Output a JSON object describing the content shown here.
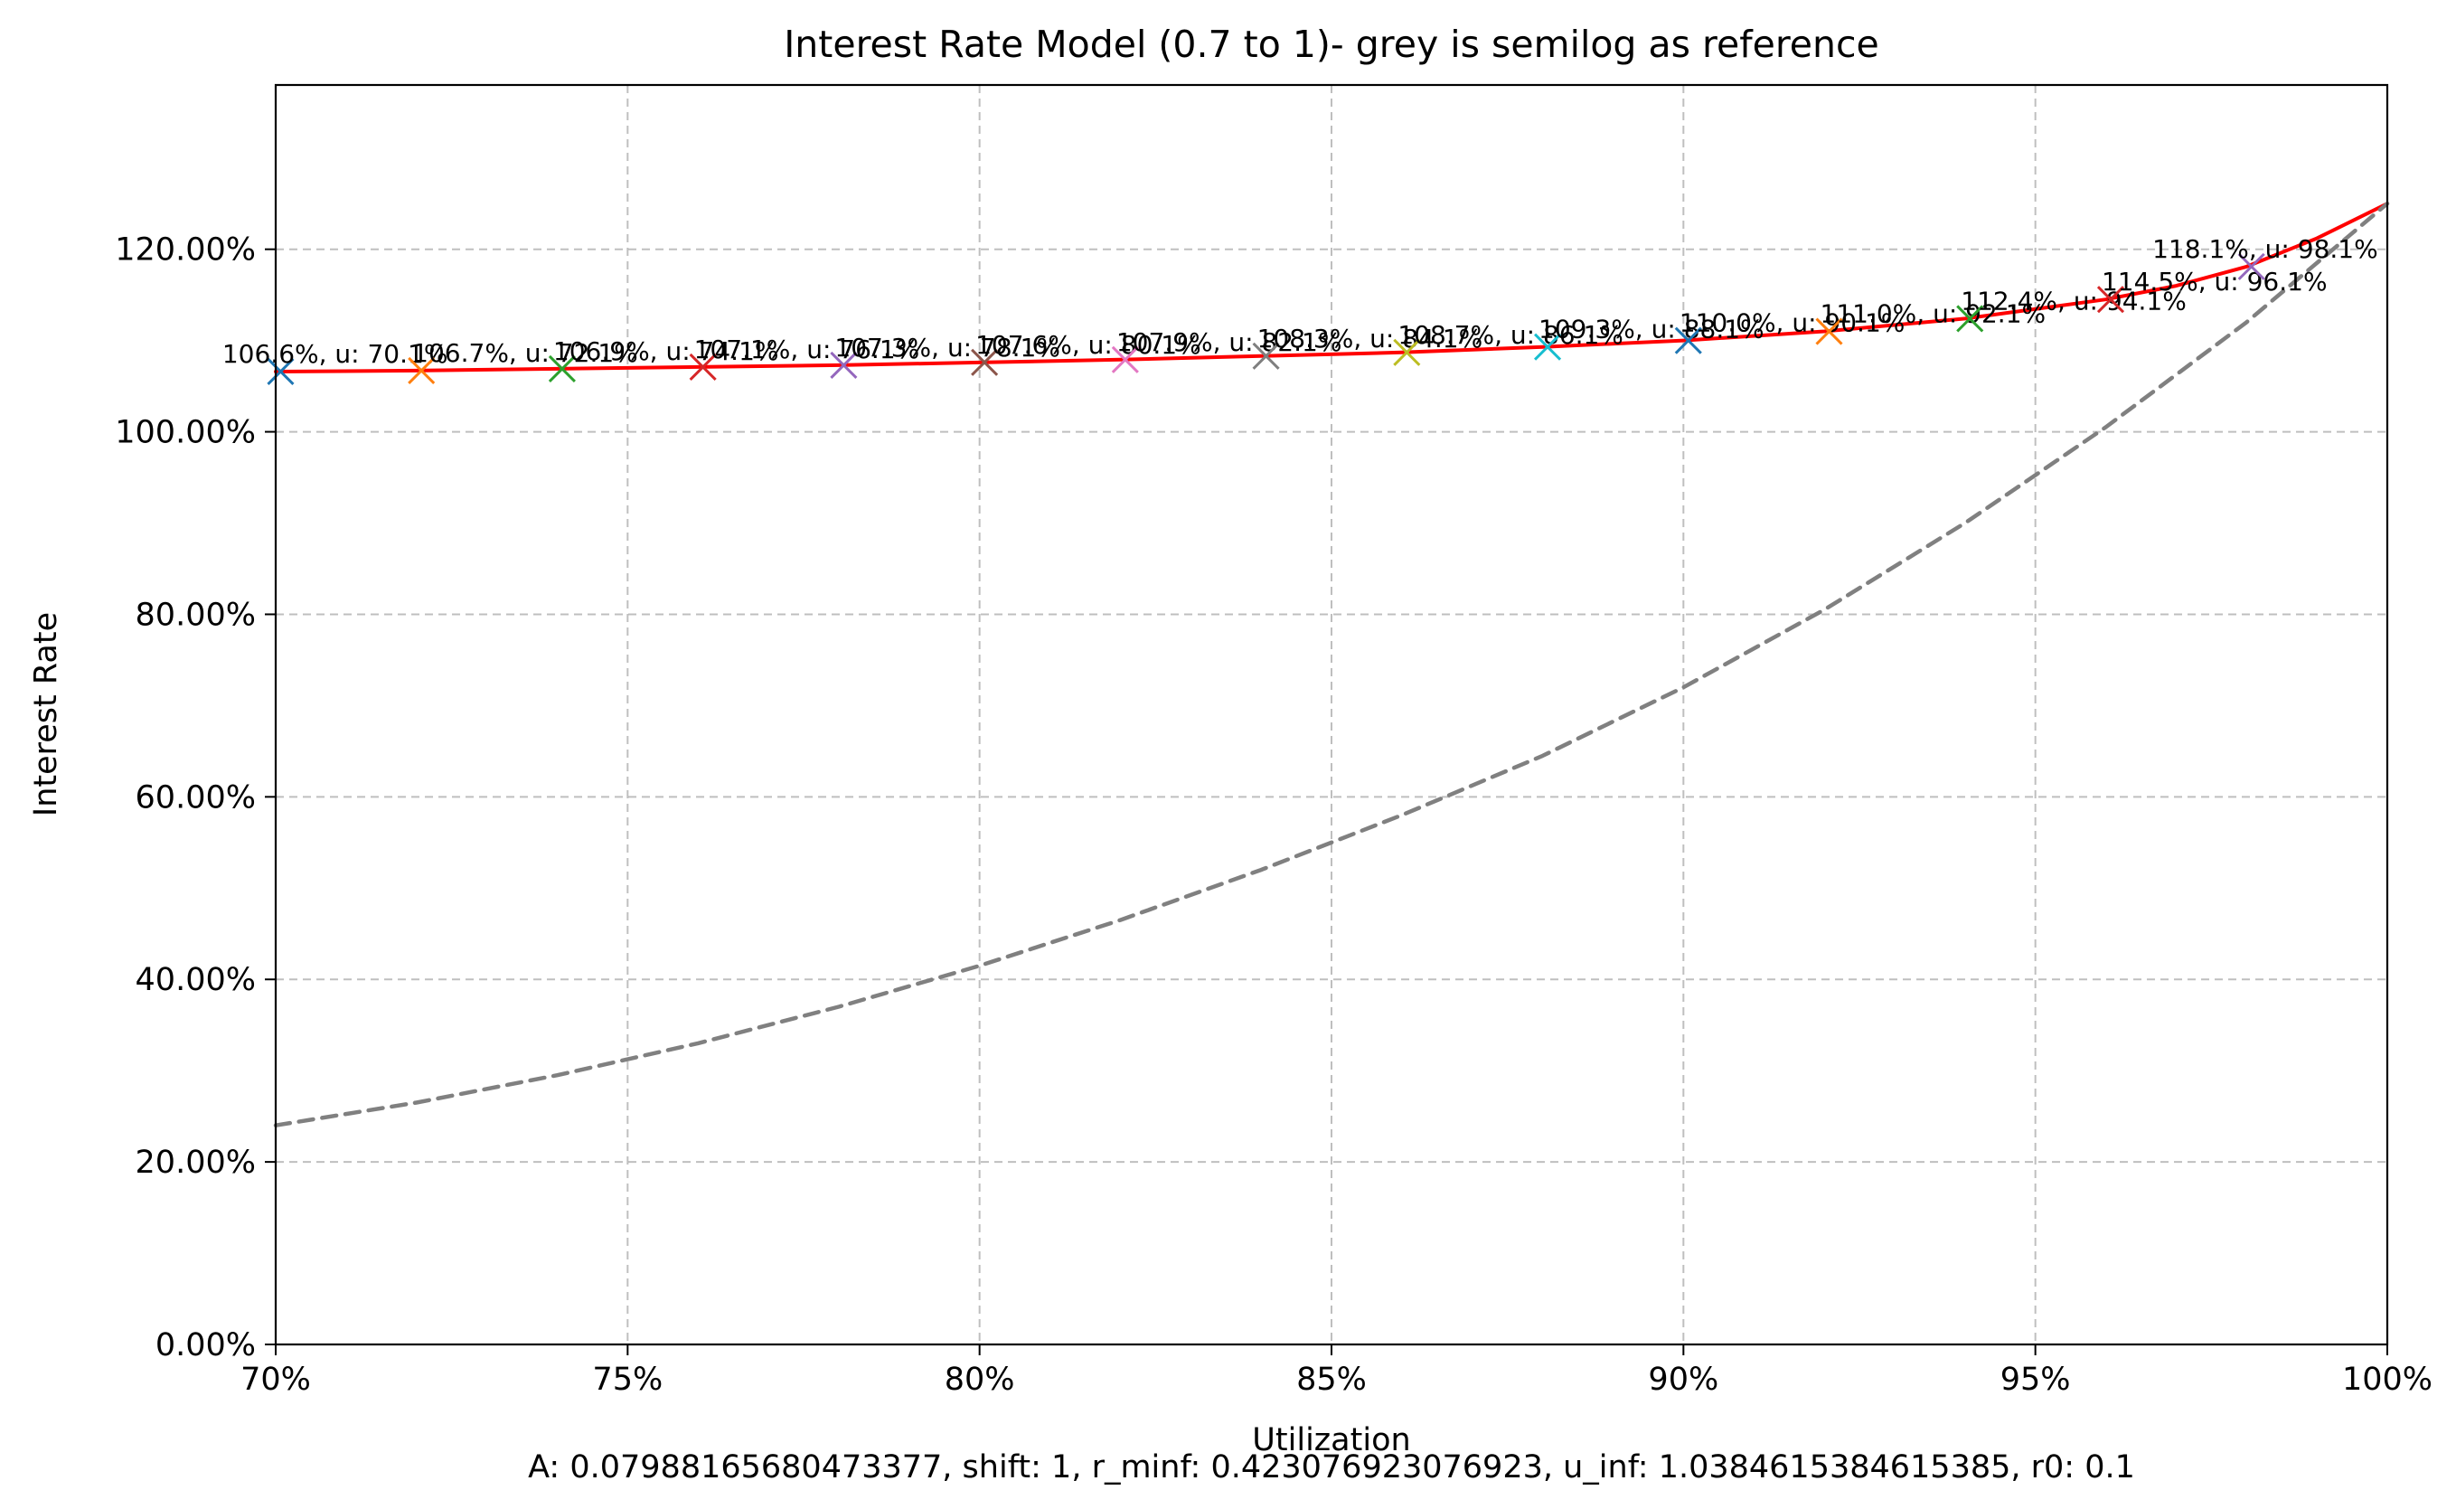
{
  "chart_data": {
    "type": "line",
    "title": "Interest Rate Model (0.7 to 1)- grey is semilog as reference",
    "xlabel": "Utilization",
    "ylabel": "Interest Rate",
    "footnote": "A: 0.07988165680473377, shift: 1, r_minf: 0.423076923076923, u_inf: 1.0384615384615385, r0: 0.1",
    "xlim": [
      0.7,
      1.0
    ],
    "ylim": [
      0.0,
      1.38
    ],
    "grid": true,
    "x_ticks": [
      0.7,
      0.75,
      0.8,
      0.85,
      0.9,
      0.95,
      1.0
    ],
    "x_tick_labels": [
      "70%",
      "75%",
      "80%",
      "85%",
      "90%",
      "95%",
      "100%"
    ],
    "y_ticks": [
      0.0,
      0.2,
      0.4,
      0.6,
      0.8,
      1.0,
      1.2
    ],
    "y_tick_labels": [
      "0.00%",
      "20.00%",
      "40.00%",
      "60.00%",
      "80.00%",
      "100.00%",
      "120.00%"
    ],
    "series": [
      {
        "color": "#ff0000",
        "style": "solid",
        "x": [
          0.7,
          0.72,
          0.74,
          0.76,
          0.78,
          0.8,
          0.82,
          0.84,
          0.86,
          0.88,
          0.9,
          0.92,
          0.94,
          0.96,
          0.97,
          0.98,
          0.99,
          1.0
        ],
        "y": [
          1.066,
          1.067,
          1.069,
          1.071,
          1.073,
          1.076,
          1.079,
          1.083,
          1.087,
          1.093,
          1.1,
          1.11,
          1.124,
          1.145,
          1.16,
          1.181,
          1.212,
          1.25
        ]
      },
      {
        "color": "#808080",
        "style": "dashed",
        "x": [
          0.7,
          0.72,
          0.74,
          0.76,
          0.78,
          0.8,
          0.82,
          0.84,
          0.86,
          0.88,
          0.9,
          0.92,
          0.94,
          0.96,
          0.98,
          1.0
        ],
        "y": [
          0.24,
          0.265,
          0.295,
          0.33,
          0.37,
          0.415,
          0.465,
          0.52,
          0.58,
          0.645,
          0.72,
          0.805,
          0.9,
          1.005,
          1.12,
          1.25
        ]
      }
    ],
    "markers": [
      {
        "x": 0.7007,
        "y": 1.066,
        "color": "#1f77b4",
        "label": "106.6%, u: 70.1%"
      },
      {
        "x": 0.7207,
        "y": 1.067,
        "color": "#ff7f0e",
        "label": "106.7%, u: 72.1%"
      },
      {
        "x": 0.7407,
        "y": 1.069,
        "color": "#2ca02c",
        "label": "106.9%, u: 74.1%"
      },
      {
        "x": 0.7607,
        "y": 1.071,
        "color": "#d62728",
        "label": "107.1%, u: 76.1%"
      },
      {
        "x": 0.7807,
        "y": 1.073,
        "color": "#9467bd",
        "label": "107.3%, u: 78.1%"
      },
      {
        "x": 0.8007,
        "y": 1.076,
        "color": "#8c564b",
        "label": "107.6%, u: 80.1%"
      },
      {
        "x": 0.8207,
        "y": 1.079,
        "color": "#e377c2",
        "label": "107.9%, u: 82.1%"
      },
      {
        "x": 0.8407,
        "y": 1.083,
        "color": "#7f7f7f",
        "label": "108.3%, u: 84.1%"
      },
      {
        "x": 0.8607,
        "y": 1.087,
        "color": "#bcbd22",
        "label": "108.7%, u: 86.1%"
      },
      {
        "x": 0.8807,
        "y": 1.093,
        "color": "#17becf",
        "label": "109.3%, u: 88.1%"
      },
      {
        "x": 0.9007,
        "y": 1.1,
        "color": "#1f77b4",
        "label": "110.0%, u: 90.1%"
      },
      {
        "x": 0.9207,
        "y": 1.11,
        "color": "#ff7f0e",
        "label": "111.0%, u: 92.1%"
      },
      {
        "x": 0.9407,
        "y": 1.124,
        "color": "#2ca02c",
        "label": "112.4%, u: 94.1%"
      },
      {
        "x": 0.9607,
        "y": 1.145,
        "color": "#d62728",
        "label": "114.5%, u: 96.1%"
      },
      {
        "x": 0.9807,
        "y": 1.181,
        "color": "#9467bd",
        "label": "118.1%, u: 98.1%"
      }
    ]
  }
}
